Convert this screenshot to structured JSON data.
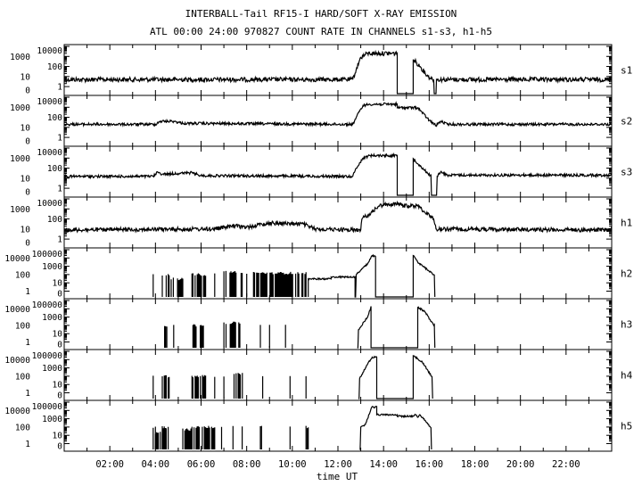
{
  "chart_data": {
    "type": "line",
    "title": "INTERBALL-Tail RF15-I HARD/SOFT X-RAY EMISSION",
    "subtitle": "ATL 00:00 24:00 970827  COUNT RATE IN CHANNELS s1-s3, h1-h5",
    "xlabel": "time UT",
    "xlim": [
      0,
      24
    ],
    "x_tick_labels": [
      "02:00",
      "04:00",
      "06:00",
      "08:00",
      "10:00",
      "12:00",
      "14:00",
      "16:00",
      "18:00",
      "20:00",
      "22:00"
    ],
    "x_tick_hours": [
      2,
      4,
      6,
      8,
      10,
      12,
      14,
      16,
      18,
      20,
      22
    ],
    "y_scale": "log",
    "grid": false,
    "panels": [
      {
        "name": "s1",
        "ymax_exp": 4,
        "y_tick_labels": [
          "10000",
          "1000",
          "100",
          "10",
          "1",
          "0"
        ],
        "noise": 0.22,
        "points": [
          [
            0,
            5
          ],
          [
            12.65,
            5
          ],
          [
            12.8,
            50
          ],
          [
            13.0,
            800
          ],
          [
            13.3,
            2000
          ],
          [
            14.6,
            2000
          ],
          [
            14.6,
            0
          ],
          [
            15.3,
            0
          ],
          [
            15.3,
            500
          ],
          [
            15.6,
            100
          ],
          [
            15.95,
            10
          ],
          [
            16.2,
            5
          ],
          [
            16.22,
            0
          ],
          [
            16.3,
            0
          ],
          [
            16.32,
            5
          ],
          [
            24,
            5
          ]
        ],
        "bursts": []
      },
      {
        "name": "s2",
        "ymax_exp": 4,
        "y_tick_labels": [
          "10000",
          "1000",
          "100",
          "10",
          "1",
          "0"
        ],
        "noise": 0.13,
        "points": [
          [
            0,
            20
          ],
          [
            4,
            20
          ],
          [
            4.2,
            40
          ],
          [
            4.8,
            40
          ],
          [
            5.2,
            25
          ],
          [
            12.65,
            20
          ],
          [
            12.8,
            100
          ],
          [
            13.1,
            1500
          ],
          [
            13.4,
            2000
          ],
          [
            14.6,
            2000
          ],
          [
            14.6,
            900
          ],
          [
            15.5,
            900
          ],
          [
            16.0,
            50
          ],
          [
            16.3,
            15
          ],
          [
            16.5,
            40
          ],
          [
            16.8,
            20
          ],
          [
            24,
            20
          ]
        ],
        "bursts": []
      },
      {
        "name": "s3",
        "ymax_exp": 4,
        "y_tick_labels": [
          "10000",
          "1000",
          "100",
          "10",
          "1",
          "0"
        ],
        "noise": 0.13,
        "points": [
          [
            0,
            15
          ],
          [
            3.9,
            15
          ],
          [
            4.1,
            40
          ],
          [
            4.3,
            25
          ],
          [
            5.6,
            35
          ],
          [
            6,
            18
          ],
          [
            12.65,
            15
          ],
          [
            12.8,
            100
          ],
          [
            13.1,
            1000
          ],
          [
            13.4,
            1800
          ],
          [
            14.6,
            1800
          ],
          [
            14.6,
            0
          ],
          [
            15.3,
            0
          ],
          [
            15.3,
            900
          ],
          [
            15.8,
            60
          ],
          [
            16.05,
            20
          ],
          [
            16.1,
            0
          ],
          [
            16.3,
            0
          ],
          [
            16.35,
            15
          ],
          [
            16.5,
            40
          ],
          [
            16.8,
            20
          ],
          [
            24,
            20
          ]
        ],
        "bursts": []
      },
      {
        "name": "h1",
        "ymax_exp": 4,
        "y_tick_labels": [
          "10000",
          "1000",
          "100",
          "10",
          "1",
          "0"
        ],
        "noise": 0.2,
        "points": [
          [
            0,
            8
          ],
          [
            6.5,
            10
          ],
          [
            7.5,
            20
          ],
          [
            8,
            15
          ],
          [
            9,
            40
          ],
          [
            10.5,
            30
          ],
          [
            11,
            10
          ],
          [
            13,
            8
          ],
          [
            13.05,
            100
          ],
          [
            13.5,
            500
          ],
          [
            13.8,
            2000
          ],
          [
            14.2,
            3000
          ],
          [
            14.8,
            3000
          ],
          [
            14.8,
            2000
          ],
          [
            15.5,
            2000
          ],
          [
            16.2,
            100
          ],
          [
            16.3,
            10
          ],
          [
            24,
            8
          ]
        ],
        "bursts": []
      },
      {
        "name": "h2",
        "ymax_exp": 5,
        "y_tick_labels": [
          "100000",
          "10000",
          "1000",
          "100",
          "10",
          "1",
          "0"
        ],
        "noise": 0.1,
        "points": [
          [
            10.7,
            0
          ],
          [
            10.7,
            30
          ],
          [
            11.7,
            30
          ],
          [
            11.7,
            50
          ],
          [
            12.75,
            50
          ],
          [
            12.75,
            0
          ],
          [
            12.8,
            100
          ],
          [
            13.3,
            2000
          ],
          [
            13.5,
            20000
          ],
          [
            13.65,
            15000
          ],
          [
            13.65,
            0
          ],
          [
            15.3,
            0
          ],
          [
            15.3,
            20000
          ],
          [
            15.5,
            3000
          ],
          [
            16.2,
            100
          ],
          [
            16.25,
            0
          ]
        ],
        "bursts": [
          [
            3.9,
            3.9,
            100
          ],
          [
            4.3,
            4.6,
            100
          ],
          [
            4.6,
            5.2,
            30
          ],
          [
            5.6,
            6.2,
            100
          ],
          [
            6.6,
            6.6,
            100
          ],
          [
            7.0,
            7.8,
            200
          ],
          [
            8.0,
            8.0,
            100
          ],
          [
            8.3,
            10.6,
            150
          ]
        ]
      },
      {
        "name": "h3",
        "ymax_exp": 5,
        "y_tick_labels": [
          "100000",
          "10000",
          "1000",
          "100",
          "10",
          "1",
          "0"
        ],
        "noise": 0.1,
        "points": [
          [
            12.85,
            0
          ],
          [
            12.9,
            30
          ],
          [
            13.3,
            1000
          ],
          [
            13.45,
            20000
          ],
          [
            13.45,
            0
          ],
          [
            15.5,
            0
          ],
          [
            15.5,
            15000
          ],
          [
            15.8,
            5000
          ],
          [
            16.2,
            100
          ],
          [
            16.25,
            0
          ]
        ],
        "bursts": [
          [
            4.4,
            4.5,
            100
          ],
          [
            4.8,
            4.8,
            100
          ],
          [
            5.6,
            6.1,
            100
          ],
          [
            7.0,
            7.7,
            200
          ],
          [
            8.6,
            8.6,
            100
          ],
          [
            9.0,
            9.1,
            100
          ],
          [
            9.7,
            9.7,
            100
          ]
        ]
      },
      {
        "name": "h4",
        "ymax_exp": 5,
        "y_tick_labels": [
          "100000",
          "10000",
          "1000",
          "100",
          "10",
          "1",
          "0"
        ],
        "noise": 0.1,
        "points": [
          [
            12.9,
            0
          ],
          [
            12.95,
            50
          ],
          [
            13.3,
            3000
          ],
          [
            13.5,
            20000
          ],
          [
            13.7,
            20000
          ],
          [
            13.7,
            0
          ],
          [
            15.3,
            0
          ],
          [
            15.3,
            30000
          ],
          [
            15.7,
            5000
          ],
          [
            16.1,
            100
          ],
          [
            16.15,
            0
          ]
        ],
        "bursts": [
          [
            3.9,
            3.9,
            100
          ],
          [
            4.3,
            4.6,
            100
          ],
          [
            5.6,
            6.2,
            100
          ],
          [
            6.6,
            6.6,
            100
          ],
          [
            7.0,
            7.0,
            100
          ],
          [
            7.4,
            7.9,
            200
          ],
          [
            8.7,
            8.7,
            100
          ],
          [
            9.9,
            9.9,
            100
          ],
          [
            10.6,
            10.6,
            100
          ]
        ]
      },
      {
        "name": "h5",
        "ymax_exp": 5,
        "y_tick_labels": [
          "100000",
          "10000",
          "1000",
          "100",
          "10",
          "1",
          "0"
        ],
        "noise": 0.1,
        "points": [
          [
            12.95,
            0
          ],
          [
            13,
            100
          ],
          [
            13.2,
            200
          ],
          [
            13.5,
            30000
          ],
          [
            13.6,
            20000
          ],
          [
            13.7,
            30000
          ],
          [
            13.7,
            3000
          ],
          [
            14.6,
            3000
          ],
          [
            14.6,
            2000
          ],
          [
            15.3,
            2000
          ],
          [
            15.4,
            3000
          ],
          [
            15.5,
            1500
          ],
          [
            15.6,
            3000
          ],
          [
            16.05,
            100
          ],
          [
            16.1,
            0
          ]
        ],
        "bursts": [
          [
            3.9,
            4.0,
            100
          ],
          [
            4.0,
            4.3,
            20
          ],
          [
            4.3,
            4.6,
            100
          ],
          [
            5.2,
            5.6,
            50
          ],
          [
            5.6,
            6.6,
            100
          ],
          [
            6.9,
            6.9,
            100
          ],
          [
            7.4,
            7.4,
            100
          ],
          [
            7.8,
            7.8,
            100
          ],
          [
            8.6,
            8.7,
            100
          ],
          [
            9.9,
            9.9,
            100
          ],
          [
            10.6,
            10.7,
            100
          ]
        ]
      }
    ]
  }
}
